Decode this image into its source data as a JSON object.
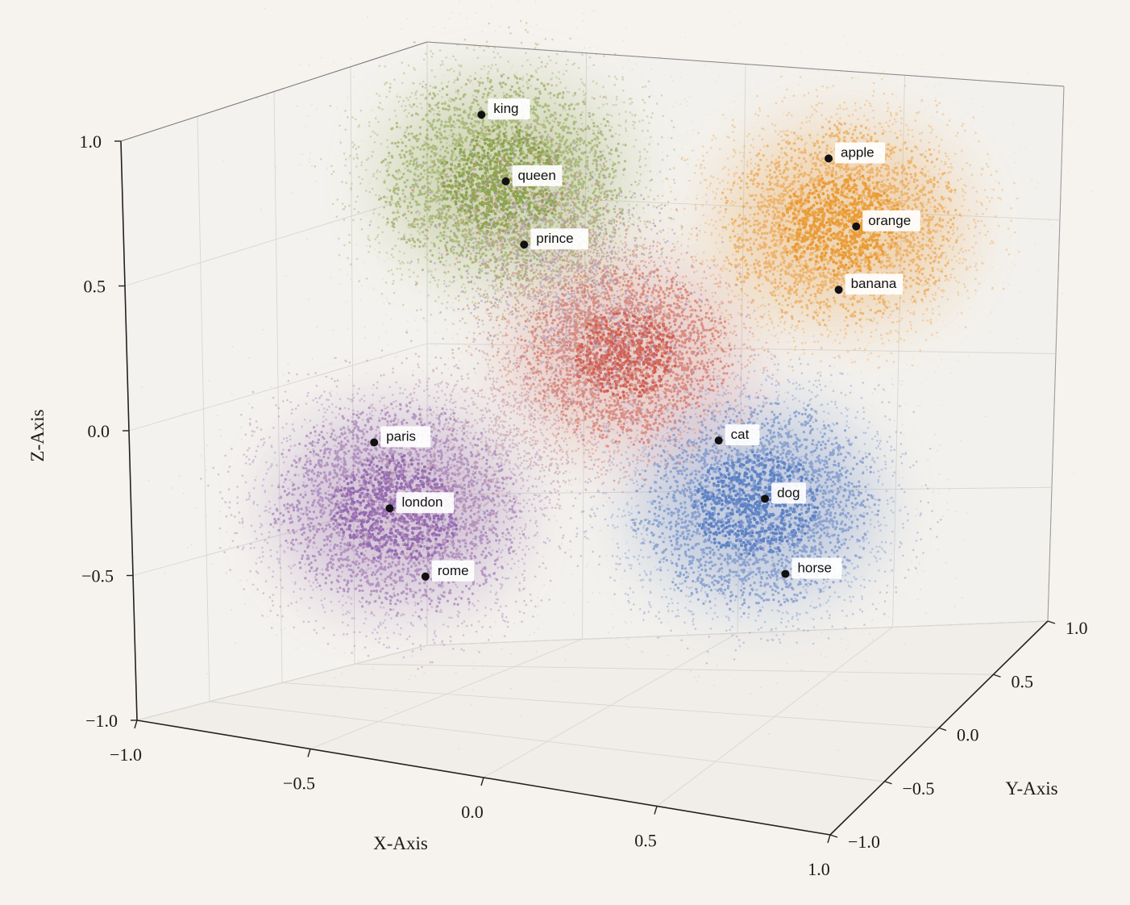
{
  "chart_data": {
    "type": "scatter",
    "projection": "3d",
    "title": "",
    "xlabel": "X-Axis",
    "ylabel": "Y-Axis",
    "zlabel": "Z-Axis",
    "xlim": [
      -1.0,
      1.0
    ],
    "ylim": [
      -1.0,
      1.0
    ],
    "zlim": [
      -1.0,
      1.0
    ],
    "x_ticks": [
      "−1.0",
      "−0.5",
      "0.0",
      "0.5",
      "1.0"
    ],
    "y_ticks": [
      "−1.0",
      "−0.5",
      "0.0",
      "0.5",
      "1.0"
    ],
    "z_ticks": [
      "−1.0",
      "−0.5",
      "0.0",
      "0.5",
      "1.0"
    ],
    "grid": true,
    "clusters": [
      {
        "color": "#7f9a3a",
        "words": [
          "king",
          "queen",
          "prince"
        ]
      },
      {
        "color": "#e8901f",
        "words": [
          "apple",
          "orange",
          "banana"
        ]
      },
      {
        "color": "#8a5aa8",
        "words": [
          "paris",
          "london",
          "rome"
        ]
      },
      {
        "color": "#4a74c0",
        "words": [
          "cat",
          "dog",
          "horse"
        ]
      },
      {
        "color": "#cc4a3c",
        "words": []
      }
    ],
    "points": [
      {
        "label": "king",
        "x": -0.62,
        "y": 0.55,
        "z": 0.86
      },
      {
        "label": "queen",
        "x": -0.5,
        "y": 0.45,
        "z": 0.66
      },
      {
        "label": "prince",
        "x": -0.4,
        "y": 0.35,
        "z": 0.47
      },
      {
        "label": "apple",
        "x": 0.4,
        "y": 0.68,
        "z": 0.76
      },
      {
        "label": "orange",
        "x": 0.48,
        "y": 0.7,
        "z": 0.52
      },
      {
        "label": "banana",
        "x": 0.44,
        "y": 0.67,
        "z": 0.3
      },
      {
        "label": "paris",
        "x": -0.58,
        "y": -0.3,
        "z": -0.1
      },
      {
        "label": "london",
        "x": -0.52,
        "y": -0.34,
        "z": -0.31
      },
      {
        "label": "rome",
        "x": -0.4,
        "y": -0.38,
        "z": -0.52
      },
      {
        "label": "cat",
        "x": 0.25,
        "y": 0.22,
        "z": -0.13
      },
      {
        "label": "dog",
        "x": 0.38,
        "y": 0.25,
        "z": -0.33
      },
      {
        "label": "horse",
        "x": 0.45,
        "y": 0.23,
        "z": -0.58
      }
    ]
  }
}
